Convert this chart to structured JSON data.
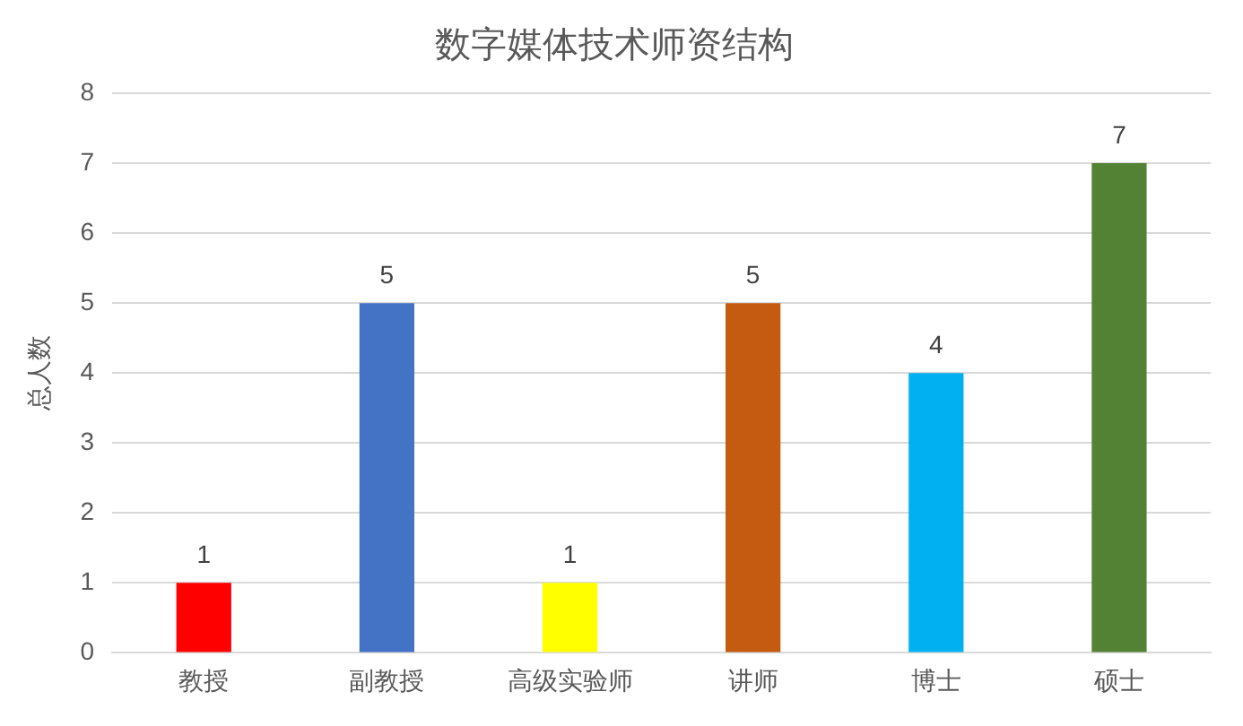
{
  "chart_data": {
    "type": "bar",
    "title": "数字媒体技术师资结构",
    "ylabel": "总人数",
    "categories": [
      "教授",
      "副教授",
      "高级实验师",
      "讲师",
      "博士",
      "硕士"
    ],
    "values": [
      1,
      5,
      1,
      5,
      4,
      7
    ],
    "colors": [
      "#ff0000",
      "#4472c4",
      "#ffff00",
      "#c55a11",
      "#00b0f0",
      "#548235"
    ],
    "ylim": [
      0,
      8
    ],
    "yticks": [
      0,
      1,
      2,
      3,
      4,
      5,
      6,
      7,
      8
    ],
    "grid": "y",
    "data_labels": true,
    "legend": false
  }
}
